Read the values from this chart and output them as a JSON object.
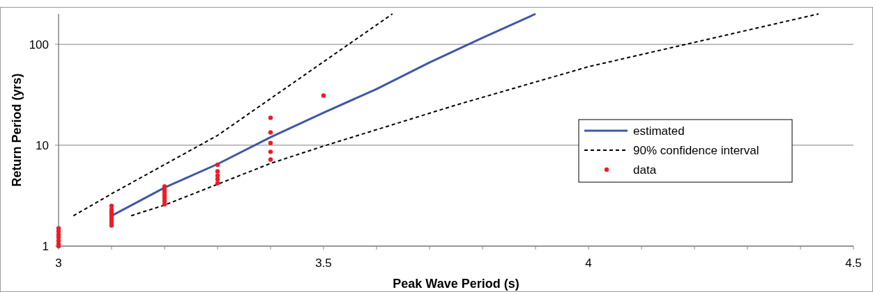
{
  "chart_data": {
    "type": "line",
    "xlabel": "Peak Wave Period (s)",
    "ylabel": "Return Period (yrs)",
    "log": "y",
    "xlim": [
      3,
      4.5
    ],
    "ylim": [
      1,
      200
    ],
    "xticks": [
      3,
      {
        "value": 3.1,
        "label": null
      },
      {
        "value": 3.2,
        "label": null
      },
      {
        "value": 3.3,
        "label": null
      },
      {
        "value": 3.4,
        "label": null
      },
      3.5,
      {
        "value": 3.6,
        "label": null
      },
      {
        "value": 3.7,
        "label": null
      },
      {
        "value": 3.8,
        "label": null
      },
      {
        "value": 3.9,
        "label": null
      },
      4,
      {
        "value": 4.1,
        "label": null
      },
      {
        "value": 4.2,
        "label": null
      },
      {
        "value": 4.3,
        "label": null
      },
      {
        "value": 4.4,
        "label": null
      },
      4.5
    ],
    "yticks": [
      1,
      10,
      100
    ],
    "grid": "y",
    "legend": "right",
    "series": [
      {
        "name": "estimated",
        "color": "#3f58a6",
        "line_style": "solid",
        "x": [
          3.1,
          3.2,
          3.3,
          3.4,
          3.5,
          3.6,
          3.7,
          3.8,
          3.9
        ],
        "values": [
          2,
          3.8,
          6.5,
          12,
          21,
          36,
          66,
          116,
          200
        ]
      },
      {
        "name": "90% confidence interval",
        "color": "#000000",
        "line_style": "dashed",
        "x": [
          3.028,
          3.1,
          3.3,
          3.63
        ],
        "values": [
          2,
          3.3,
          12.5,
          200
        ]
      },
      {
        "color": "#000000",
        "line_style": "dashed",
        "x": [
          3.137,
          3.2,
          3.4,
          3.5,
          3.75,
          4,
          4.434
        ],
        "values": [
          2,
          2.55,
          6.6,
          9.8,
          25,
          60,
          200
        ]
      },
      {
        "name": "data",
        "type": "scatter",
        "color": "#ee1c25",
        "marker": "circle",
        "x": [
          3,
          3,
          3,
          3,
          3,
          3,
          3,
          3.1,
          3.1,
          3.1,
          3.1,
          3.1,
          3.1,
          3.1,
          3.1,
          3.1,
          3.2,
          3.2,
          3.2,
          3.2,
          3.2,
          3.2,
          3.2,
          3.3,
          3.3,
          3.3,
          3.3,
          3.3,
          3.4,
          3.4,
          3.4,
          3.4,
          3.4,
          3.5
        ],
        "values": [
          1.5,
          1.4,
          1.3,
          1.22,
          1.13,
          1.05,
          1,
          2.5,
          2.3,
          2.2,
          2.1,
          2,
          1.9,
          1.8,
          1.7,
          1.6,
          3.9,
          3.6,
          3.4,
          3.2,
          3,
          2.8,
          2.6,
          6.4,
          5.5,
          5,
          4.6,
          4.2,
          18.7,
          13.4,
          10.5,
          8.6,
          7.2,
          31
        ]
      }
    ]
  }
}
